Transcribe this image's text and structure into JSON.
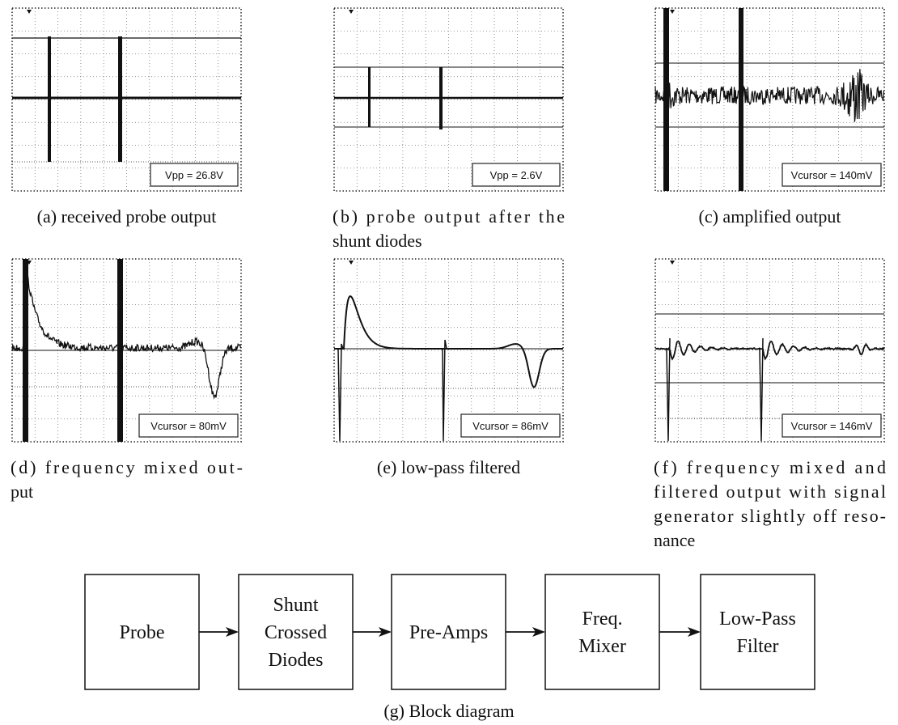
{
  "panels": [
    {
      "readout": "Vpp = 26.8V",
      "caption": [
        "(a) received probe output"
      ]
    },
    {
      "readout": "Vpp = 2.6V",
      "caption": [
        "(b) probe output after the",
        "shunt diodes"
      ]
    },
    {
      "readout": "Vcursor = 140mV",
      "caption": [
        "(c) amplified output"
      ]
    },
    {
      "readout": "Vcursor = 80mV",
      "caption": [
        "(d) frequency mixed out-",
        "put"
      ]
    },
    {
      "readout": "Vcursor = 86mV",
      "caption": [
        "(e) low-pass filtered"
      ]
    },
    {
      "readout": "Vcursor = 146mV",
      "caption": [
        "(f) frequency mixed and",
        "filtered output with signal",
        "generator slightly off reso-",
        "nance"
      ]
    }
  ],
  "block_diagram": {
    "blocks": [
      [
        "Probe"
      ],
      [
        "Shunt",
        "Crossed",
        "Diodes"
      ],
      [
        "Pre-Amps"
      ],
      [
        "Freq.",
        "Mixer"
      ],
      [
        "Low-Pass",
        "Filter"
      ]
    ],
    "caption": "(g) Block diagram"
  }
}
